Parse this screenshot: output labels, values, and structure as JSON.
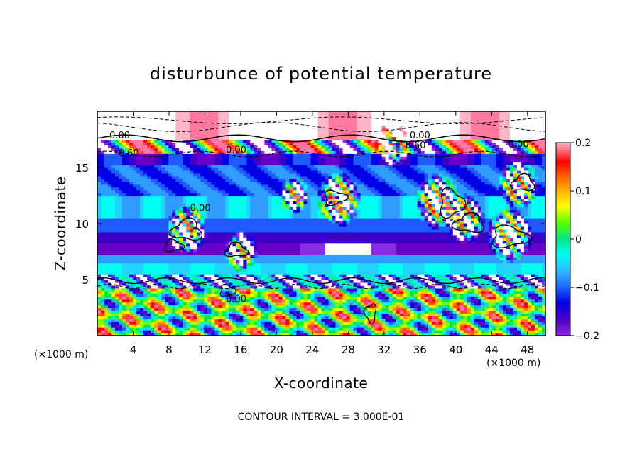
{
  "chart_data": {
    "type": "heatmap",
    "title": "disturbunce of potential temperature",
    "xlabel": "X-coordinate",
    "ylabel": "Z-coordinate",
    "x_unit_left": "(×1000 m)",
    "x_unit_right": "(×1000 m)",
    "xlim": [
      0,
      50
    ],
    "ylim": [
      0,
      20
    ],
    "xticks": [
      4,
      8,
      12,
      16,
      20,
      24,
      28,
      32,
      36,
      40,
      44,
      48
    ],
    "yticks": [
      5,
      10,
      15
    ],
    "colorbar": {
      "range": [
        -0.2,
        0.2
      ],
      "ticks": [
        {
          "value": 0.2,
          "label": "0.2"
        },
        {
          "value": 0.1,
          "label": "0.1"
        },
        {
          "value": 0,
          "label": "0"
        },
        {
          "value": -0.1,
          "label": "−0.1"
        },
        {
          "value": -0.2,
          "label": "−0.2"
        }
      ],
      "colors": [
        "#8a2be2",
        "#6a00c8",
        "#3c00c8",
        "#0000e6",
        "#1e5aff",
        "#2f9cff",
        "#22d2ff",
        "#00fff0",
        "#00f0b4",
        "#00e650",
        "#78ff00",
        "#c8ff00",
        "#ffff00",
        "#ffc800",
        "#ff8c00",
        "#ff5000",
        "#ff0000",
        "#ff3c64",
        "#ff78a0",
        "#ffb4c8"
      ]
    },
    "contour_labels": [
      {
        "text": "0.00",
        "x": 2.5,
        "y": 17.6
      },
      {
        "text": "0.60",
        "x": 3.5,
        "y": 16.0
      },
      {
        "text": "0.00",
        "x": 15.5,
        "y": 16.3
      },
      {
        "text": "0.00",
        "x": 36.0,
        "y": 17.6
      },
      {
        "text": "0.60",
        "x": 35.5,
        "y": 16.7
      },
      {
        "text": "0.00",
        "x": 47.0,
        "y": 16.8
      },
      {
        "text": "0.00",
        "x": 11.5,
        "y": 11.1
      },
      {
        "text": "0.00",
        "x": 15.5,
        "y": 3.0
      }
    ],
    "contour_interval_text": "CONTOUR INTERVAL = 3.000E-01"
  }
}
